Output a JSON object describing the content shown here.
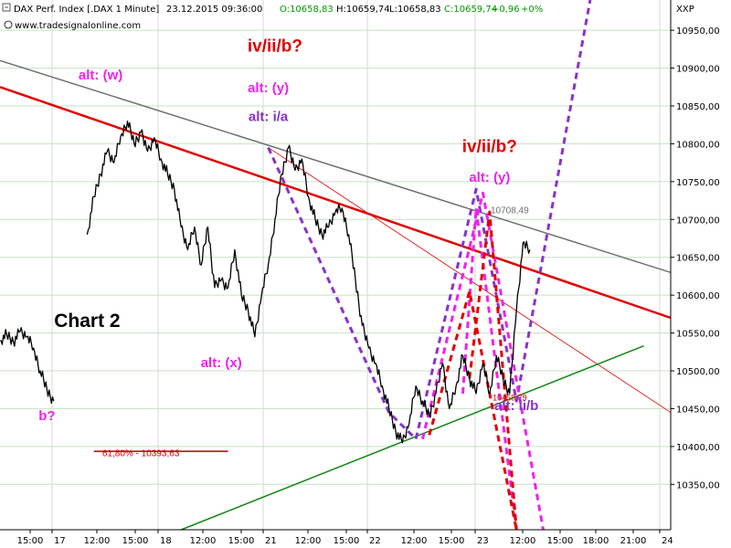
{
  "header": {
    "instrument": "DAX Perf. Index [.DAX  1 Minute]",
    "datetime": "23.12.2015 09:36:00",
    "open": "O:10658,83",
    "high": "H:10659,74",
    "low": "L:10658,83",
    "close": "C:10659,74",
    "change": "+0,96",
    "change_pct": "+0%",
    "source": "www.tradesignalonline.com",
    "price_unit": "XXP"
  },
  "colors": {
    "background": "#ffffff",
    "grid": "#c8e0c8",
    "price": "#000000",
    "magenta": "#ee22ee",
    "purple": "#8833cc",
    "red": "#e00000",
    "darkred": "#b00000",
    "green": "#118811",
    "gray": "#707070",
    "positive": "#009900"
  },
  "chart_data": {
    "type": "line",
    "title": "",
    "xlabel": "",
    "ylabel": "",
    "ylim": [
      10290,
      10990
    ],
    "y_ticks": [
      "10950,00",
      "10900,00",
      "10850,00",
      "10800,00",
      "10750,00",
      "10700,00",
      "10650,00",
      "10600,00",
      "10550,00",
      "10500,00",
      "10450,00",
      "10400,00",
      "10350,00"
    ],
    "x_ticks": [
      "15:00",
      "17",
      "12:00",
      "15:00",
      "18",
      "12:00",
      "15:00",
      "21",
      "12:00",
      "15:00",
      "22",
      "12:00",
      "15:00",
      "23",
      "12:00",
      "15:00",
      "18:00",
      "21:00",
      "24"
    ],
    "grid": true,
    "legend": "none",
    "price_series": [
      {
        "t": 0,
        "y": 10540
      },
      {
        "t": 1,
        "y": 10548
      },
      {
        "t": 2,
        "y": 10538
      },
      {
        "t": 3,
        "y": 10552
      },
      {
        "t": 4,
        "y": 10545
      },
      {
        "t": 5,
        "y": 10530
      },
      {
        "t": 6,
        "y": 10500
      },
      {
        "t": 7,
        "y": 10475
      },
      {
        "t": 8,
        "y": 10460
      },
      {
        "t": 13,
        "y": 10680
      },
      {
        "t": 14,
        "y": 10730
      },
      {
        "t": 15,
        "y": 10760
      },
      {
        "t": 16,
        "y": 10790
      },
      {
        "t": 17,
        "y": 10775
      },
      {
        "t": 18,
        "y": 10810
      },
      {
        "t": 19,
        "y": 10830
      },
      {
        "t": 20,
        "y": 10800
      },
      {
        "t": 21,
        "y": 10815
      },
      {
        "t": 22,
        "y": 10790
      },
      {
        "t": 23,
        "y": 10808
      },
      {
        "t": 24,
        "y": 10780
      },
      {
        "t": 25,
        "y": 10760
      },
      {
        "t": 26,
        "y": 10740
      },
      {
        "t": 27,
        "y": 10690
      },
      {
        "t": 28,
        "y": 10660
      },
      {
        "t": 29,
        "y": 10690
      },
      {
        "t": 30,
        "y": 10640
      },
      {
        "t": 31,
        "y": 10690
      },
      {
        "t": 32,
        "y": 10610
      },
      {
        "t": 33,
        "y": 10620
      },
      {
        "t": 34,
        "y": 10610
      },
      {
        "t": 35,
        "y": 10660
      },
      {
        "t": 36,
        "y": 10600
      },
      {
        "t": 37,
        "y": 10580
      },
      {
        "t": 38,
        "y": 10545
      },
      {
        "t": 39,
        "y": 10600
      },
      {
        "t": 40,
        "y": 10640
      },
      {
        "t": 41,
        "y": 10700
      },
      {
        "t": 42,
        "y": 10760
      },
      {
        "t": 43,
        "y": 10795
      },
      {
        "t": 44,
        "y": 10765
      },
      {
        "t": 45,
        "y": 10780
      },
      {
        "t": 46,
        "y": 10730
      },
      {
        "t": 47,
        "y": 10700
      },
      {
        "t": 48,
        "y": 10680
      },
      {
        "t": 49,
        "y": 10690
      },
      {
        "t": 50,
        "y": 10710
      },
      {
        "t": 51,
        "y": 10715
      },
      {
        "t": 52,
        "y": 10680
      },
      {
        "t": 53,
        "y": 10620
      },
      {
        "t": 54,
        "y": 10560
      },
      {
        "t": 55,
        "y": 10530
      },
      {
        "t": 56,
        "y": 10510
      },
      {
        "t": 57,
        "y": 10480
      },
      {
        "t": 58,
        "y": 10450
      },
      {
        "t": 59,
        "y": 10420
      },
      {
        "t": 60,
        "y": 10405
      },
      {
        "t": 61,
        "y": 10430
      },
      {
        "t": 62,
        "y": 10480
      },
      {
        "t": 63,
        "y": 10460
      },
      {
        "t": 64,
        "y": 10440
      },
      {
        "t": 65,
        "y": 10470
      },
      {
        "t": 66,
        "y": 10510
      },
      {
        "t": 67,
        "y": 10450
      },
      {
        "t": 68,
        "y": 10480
      },
      {
        "t": 69,
        "y": 10520
      },
      {
        "t": 70,
        "y": 10490
      },
      {
        "t": 71,
        "y": 10470
      },
      {
        "t": 72,
        "y": 10510
      },
      {
        "t": 73,
        "y": 10470
      },
      {
        "t": 74,
        "y": 10520
      },
      {
        "t": 75,
        "y": 10490
      },
      {
        "t": 76,
        "y": 10470
      },
      {
        "t": 77,
        "y": 10580
      },
      {
        "t": 78,
        "y": 10670
      },
      {
        "t": 79,
        "y": 10660
      }
    ],
    "trendlines": [
      {
        "color": "gray",
        "width": 1.5,
        "dash": false,
        "from": {
          "t": 0,
          "y": 10910
        },
        "to": {
          "t": 100,
          "y": 10630
        }
      },
      {
        "color": "red",
        "width": 2.5,
        "dash": false,
        "from": {
          "t": 0,
          "y": 10875
        },
        "to": {
          "t": 100,
          "y": 10570
        }
      },
      {
        "color": "red",
        "width": 0.8,
        "dash": false,
        "from": {
          "t": 40,
          "y": 10795
        },
        "to": {
          "t": 100,
          "y": 10445
        }
      },
      {
        "color": "green",
        "width": 1.5,
        "dash": false,
        "from": {
          "t": 27,
          "y": 10290
        },
        "to": {
          "t": 96,
          "y": 10533
        }
      }
    ],
    "projections": [
      {
        "color": "purple",
        "points": [
          {
            "t": 40,
            "y": 10795
          },
          {
            "t": 58,
            "y": 10445
          },
          {
            "t": 62,
            "y": 10410
          },
          {
            "t": 71,
            "y": 10740
          },
          {
            "t": 77,
            "y": 10460
          },
          {
            "t": 88,
            "y": 10990
          }
        ]
      },
      {
        "color": "magenta",
        "points": [
          {
            "t": 63,
            "y": 10410
          },
          {
            "t": 72,
            "y": 10735
          },
          {
            "t": 81,
            "y": 10290
          }
        ]
      },
      {
        "color": "magenta",
        "points": [
          {
            "t": 69,
            "y": 10470
          },
          {
            "t": 71,
            "y": 10715
          },
          {
            "t": 77,
            "y": 10290
          }
        ]
      },
      {
        "color": "red",
        "points": [
          {
            "t": 64,
            "y": 10415
          },
          {
            "t": 70,
            "y": 10605
          },
          {
            "t": 77,
            "y": 10290
          }
        ]
      },
      {
        "color": "red",
        "points": [
          {
            "t": 70,
            "y": 10490
          },
          {
            "t": 73,
            "y": 10710
          },
          {
            "t": 77,
            "y": 10290
          }
        ]
      }
    ],
    "annotations": [
      {
        "text": "alt: (w)",
        "t": 15,
        "y": 10885,
        "color": "magenta",
        "size": 15
      },
      {
        "text": "iv/ii/b?",
        "t": 41,
        "y": 10922,
        "color": "red",
        "size": 19
      },
      {
        "text": "alt: (y)",
        "t": 40,
        "y": 10868,
        "color": "magenta",
        "size": 15
      },
      {
        "text": "alt: i/a",
        "t": 40,
        "y": 10830,
        "color": "purple",
        "size": 15
      },
      {
        "text": "iv/ii/b?",
        "t": 73,
        "y": 10789,
        "color": "red",
        "size": 19
      },
      {
        "text": "alt: (y)",
        "t": 73,
        "y": 10750,
        "color": "magenta",
        "size": 15
      },
      {
        "text": "alt: (x)",
        "t": 33,
        "y": 10505,
        "color": "magenta",
        "size": 15
      },
      {
        "text": "alt: ii/b",
        "t": 77,
        "y": 10448,
        "color": "purple",
        "size": 15
      },
      {
        "text": "b?",
        "t": 7,
        "y": 10435,
        "color": "magenta",
        "size": 15
      },
      {
        "text": "Chart 2",
        "t": 13,
        "y": 10558,
        "color": "black",
        "size": 21
      },
      {
        "text": "10708,49",
        "t": 76,
        "y": 10708,
        "color": "gray",
        "size": 10
      },
      {
        "text": "10458,79",
        "t": 76,
        "y": 10461,
        "color": "red",
        "size": 9
      },
      {
        "text": "61,80% - 10393,63",
        "t": 21,
        "y": 10387,
        "color": "red",
        "size": 10
      }
    ],
    "fib_level": {
      "label": "61,80% - 10393,63",
      "value": 10393.63,
      "from_t": 14,
      "to_t": 34
    }
  }
}
